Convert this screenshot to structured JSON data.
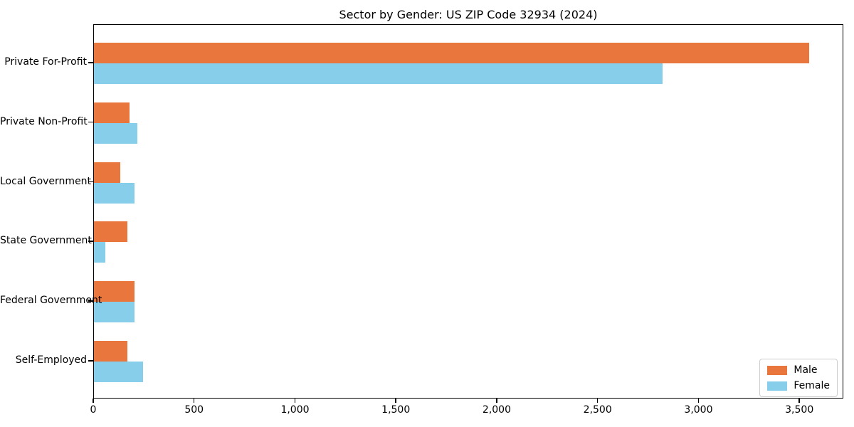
{
  "title": "Sector by Gender: US ZIP Code 32934 (2024)",
  "colors": {
    "male": "#e8763d",
    "female": "#87ceeb",
    "axis": "#000000",
    "legend_border": "#cccccc",
    "background": "#ffffff"
  },
  "legend": {
    "position": "lower right",
    "items": [
      {
        "label": "Male",
        "color": "#e8763d"
      },
      {
        "label": "Female",
        "color": "#87ceeb"
      }
    ]
  },
  "chart_data": {
    "type": "bar",
    "orientation": "horizontal",
    "title": "Sector by Gender: US ZIP Code 32934 (2024)",
    "xlabel": "",
    "ylabel": "",
    "categories": [
      "Private For-Profit",
      "Private Non-Profit",
      "Local Government",
      "State Government",
      "Federal Government",
      "Self-Employed"
    ],
    "series": [
      {
        "name": "Male",
        "color": "#e8763d",
        "values": [
          3545,
          175,
          130,
          165,
          200,
          165
        ]
      },
      {
        "name": "Female",
        "color": "#87ceeb",
        "values": [
          2820,
          215,
          200,
          55,
          200,
          245
        ]
      }
    ],
    "xlim": [
      0,
      3718
    ],
    "xticks": [
      0,
      500,
      1000,
      1500,
      2000,
      2500,
      3000,
      3500
    ],
    "xtick_labels": [
      "0",
      "500",
      "1,000",
      "1,500",
      "2,000",
      "2,500",
      "3,000",
      "3,500"
    ],
    "grid": false,
    "legend_position": "lower right"
  }
}
